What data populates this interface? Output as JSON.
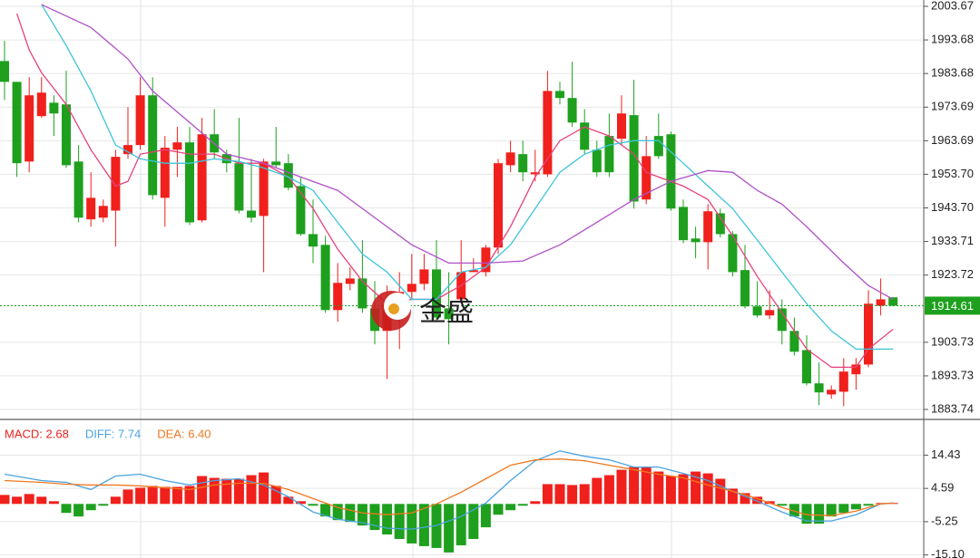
{
  "chart_data": [
    {
      "type": "candlestick",
      "up_color": "#f0201c",
      "down_color": "#1ea01e",
      "grid": true,
      "ylim": [
        1881.58,
        2005.56
      ],
      "yticks": [
        2003.67,
        1993.68,
        1983.68,
        1973.69,
        1963.69,
        {
          "value": 1953.7,
          "label": "1953.70"
        },
        {
          "value": 1943.7,
          "label": "1943.70"
        },
        1933.71,
        1923.72,
        1903.73,
        1893.73,
        1883.74
      ],
      "last_price": 1914.61,
      "last_price_color": "#1ea01e",
      "watermark": "金盛",
      "ohlc": [
        [
          1987.4,
          1993.4,
          1975.8,
          1981.2
        ],
        [
          1981.2,
          1981.2,
          1952.9,
          1957.0
        ],
        [
          1957.5,
          1982.6,
          1954.3,
          1977.2
        ],
        [
          1971.0,
          1982.6,
          1970.5,
          1978.0
        ],
        [
          1975.0,
          1977.2,
          1965.1,
          1971.8
        ],
        [
          1974.5,
          1984.5,
          1955.6,
          1956.4
        ],
        [
          1957.5,
          1962.4,
          1939.4,
          1940.8
        ],
        [
          1940.3,
          1954.3,
          1938.1,
          1946.7
        ],
        [
          1940.8,
          1946.2,
          1939.4,
          1944.3
        ],
        [
          1942.9,
          1961.0,
          1932.2,
          1958.9
        ],
        [
          1959.7,
          1973.7,
          1958.3,
          1962.4
        ],
        [
          1962.4,
          1982.6,
          1961.0,
          1977.2
        ],
        [
          1977.2,
          1982.6,
          1946.2,
          1947.5
        ],
        [
          1946.7,
          1965.1,
          1938.1,
          1961.6
        ],
        [
          1961.0,
          1967.8,
          1952.9,
          1963.2
        ],
        [
          1963.2,
          1967.8,
          1938.6,
          1939.4
        ],
        [
          1940.0,
          1970.5,
          1939.4,
          1965.6
        ],
        [
          1965.6,
          1973.1,
          1958.3,
          1960.2
        ],
        [
          1959.7,
          1961.0,
          1954.3,
          1957.0
        ],
        [
          1957.0,
          1970.5,
          1942.1,
          1942.9
        ],
        [
          1942.9,
          1958.3,
          1939.4,
          1940.8
        ],
        [
          1941.3,
          1958.3,
          1924.6,
          1957.5
        ],
        [
          1957.5,
          1967.8,
          1955.6,
          1956.4
        ],
        [
          1957.0,
          1959.7,
          1948.9,
          1949.7
        ],
        [
          1950.2,
          1952.9,
          1935.4,
          1935.9
        ],
        [
          1935.9,
          1946.2,
          1927.3,
          1932.2
        ],
        [
          1932.7,
          1935.4,
          1912.5,
          1913.3
        ],
        [
          1913.3,
          1927.3,
          1909.8,
          1921.4
        ],
        [
          1921.1,
          1926.0,
          1919.2,
          1922.7
        ],
        [
          1922.7,
          1934.1,
          1912.5,
          1913.8
        ],
        [
          1913.8,
          1921.9,
          1903.1,
          1907.1
        ],
        [
          1907.1,
          1920.6,
          1892.8,
          1915.2
        ],
        [
          1913.8,
          1924.6,
          1901.7,
          1918.7
        ],
        [
          1918.7,
          1930.0,
          1916.5,
          1921.1
        ],
        [
          1921.1,
          1930.0,
          1919.2,
          1925.4
        ],
        [
          1925.4,
          1934.1,
          1909.8,
          1911.1
        ],
        [
          1913.8,
          1924.6,
          1903.1,
          1910.6
        ],
        [
          1916.5,
          1934.1,
          1915.2,
          1924.6
        ],
        [
          1924.6,
          1928.7,
          1924.6,
          1925.2
        ],
        [
          1924.6,
          1932.7,
          1923.3,
          1931.9
        ],
        [
          1931.9,
          1958.3,
          1930.0,
          1957.0
        ],
        [
          1956.4,
          1963.7,
          1954.3,
          1960.2
        ],
        [
          1959.7,
          1963.7,
          1951.6,
          1954.3
        ],
        [
          1953.7,
          1961.0,
          1951.6,
          1954.3
        ],
        [
          1953.7,
          1984.5,
          1952.9,
          1978.5
        ],
        [
          1978.5,
          1981.2,
          1974.5,
          1976.4
        ],
        [
          1976.4,
          1987.2,
          1967.8,
          1969.1
        ],
        [
          1969.1,
          1973.1,
          1959.7,
          1961.0
        ],
        [
          1961.0,
          1963.7,
          1952.9,
          1954.3
        ],
        [
          1965.1,
          1971.8,
          1952.9,
          1954.3
        ],
        [
          1964.3,
          1977.2,
          1962.4,
          1971.8
        ],
        [
          1971.3,
          1981.8,
          1943.5,
          1945.6
        ],
        [
          1946.2,
          1965.1,
          1944.8,
          1959.1
        ],
        [
          1965.1,
          1971.8,
          1958.3,
          1959.1
        ],
        [
          1965.6,
          1966.4,
          1942.9,
          1943.5
        ],
        [
          1944.0,
          1946.2,
          1933.2,
          1934.1
        ],
        [
          1934.6,
          1938.1,
          1928.7,
          1933.5
        ],
        [
          1933.5,
          1944.8,
          1925.4,
          1942.7
        ],
        [
          1942.1,
          1943.5,
          1934.9,
          1935.9
        ],
        [
          1935.9,
          1936.8,
          1923.3,
          1924.6
        ],
        [
          1925.2,
          1932.7,
          1913.8,
          1914.4
        ],
        [
          1914.4,
          1921.9,
          1911.1,
          1911.7
        ],
        [
          1911.7,
          1919.2,
          1910.6,
          1913.3
        ],
        [
          1913.8,
          1916.5,
          1903.1,
          1907.1
        ],
        [
          1907.1,
          1911.1,
          1899.8,
          1900.9
        ],
        [
          1901.4,
          1905.8,
          1890.9,
          1891.5
        ],
        [
          1891.5,
          1897.7,
          1885.0,
          1888.8
        ],
        [
          1888.2,
          1890.9,
          1886.9,
          1889.6
        ],
        [
          1889.0,
          1899.0,
          1884.7,
          1895.0
        ],
        [
          1894.2,
          1899.0,
          1889.6,
          1897.1
        ],
        [
          1897.1,
          1919.2,
          1896.3,
          1915.2
        ],
        [
          1914.6,
          1922.7,
          1911.7,
          1916.5
        ],
        [
          1917.1,
          1917.1,
          1914.4,
          1914.61
        ]
      ],
      "lines": [
        {
          "color": "#e8407c",
          "x": [
            1,
            2,
            3,
            5,
            7,
            9,
            10,
            11,
            13,
            15,
            17,
            19,
            21,
            23,
            25,
            27,
            29,
            31,
            33,
            35,
            37,
            39,
            41,
            43,
            45,
            47,
            49,
            51,
            52,
            53,
            55,
            57,
            59,
            61,
            63,
            65,
            67,
            69,
            70,
            72
          ],
          "values": [
            2001.5,
            1990.7,
            1983.9,
            1974.5,
            1961.0,
            1950.2,
            1951.6,
            1959.7,
            1961.0,
            1959.7,
            1959.7,
            1957.0,
            1957.0,
            1952.9,
            1943.5,
            1931.4,
            1921.9,
            1915.2,
            1916.5,
            1916.5,
            1920.6,
            1926.0,
            1938.1,
            1952.9,
            1963.7,
            1967.8,
            1965.1,
            1959.7,
            1954.3,
            1952.9,
            1950.2,
            1946.2,
            1935.4,
            1923.3,
            1912.5,
            1901.7,
            1896.3,
            1896.3,
            1901.7,
            1907.6
          ]
        },
        {
          "color": "#3cc4da",
          "x": [
            3,
            5,
            7,
            9,
            11,
            13,
            15,
            17,
            19,
            21,
            23,
            25,
            27,
            29,
            31,
            33,
            35,
            37,
            39,
            41,
            43,
            45,
            47,
            49,
            51,
            53,
            55,
            57,
            59,
            61,
            63,
            65,
            67,
            69,
            72
          ],
          "values": [
            2004.2,
            1992.0,
            1978.5,
            1962.4,
            1958.3,
            1957.0,
            1957.0,
            1958.3,
            1957.5,
            1955.6,
            1952.9,
            1948.9,
            1939.4,
            1930.0,
            1924.6,
            1916.5,
            1916.5,
            1924.6,
            1926.0,
            1932.7,
            1943.5,
            1954.3,
            1959.7,
            1962.4,
            1963.7,
            1963.7,
            1957.0,
            1950.2,
            1943.5,
            1934.1,
            1924.6,
            1915.2,
            1907.1,
            1901.7,
            1901.7
          ]
        },
        {
          "color": "#b050c8",
          "x": [
            3,
            7,
            10,
            12,
            15,
            18,
            21,
            24,
            27,
            30,
            33,
            36,
            39,
            42,
            45,
            48,
            51,
            54,
            57,
            59,
            61,
            63,
            65,
            68,
            70,
            72
          ],
          "values": [
            2004.2,
            1997.4,
            1988.0,
            1978.5,
            1969.1,
            1959.7,
            1957.0,
            1952.9,
            1948.9,
            1940.8,
            1932.7,
            1927.3,
            1927.3,
            1927.9,
            1932.7,
            1939.4,
            1946.2,
            1951.6,
            1954.8,
            1954.3,
            1948.9,
            1944.8,
            1938.1,
            1927.3,
            1920.6,
            1916.5
          ]
        }
      ]
    },
    {
      "type": "macd",
      "up_color": "#f0201c",
      "down_color": "#1ea01e",
      "grid": true,
      "ylim": [
        -16.0,
        24.2
      ],
      "yticks": [
        14.43,
        4.59,
        -5.25,
        {
          "value": -15.1,
          "label": "-15.10"
        }
      ],
      "legend": [
        {
          "text": "MACD: 2.68",
          "color": "#e8221d"
        },
        {
          "text": "DIFF: 7.74",
          "color": "#4aa3e0"
        },
        {
          "text": "DEA: 6.40",
          "color": "#f07820"
        }
      ],
      "values": [
        2.66,
        2.13,
        2.93,
        2.13,
        0.8,
        -2.66,
        -3.72,
        -1.86,
        -0.53,
        2.13,
        4.26,
        4.79,
        5.32,
        5.05,
        5.05,
        5.32,
        8.25,
        7.71,
        7.45,
        7.45,
        8.51,
        9.31,
        5.32,
        2.13,
        0.8,
        -0.53,
        -3.72,
        -4.79,
        -5.32,
        -6.38,
        -7.71,
        -9.04,
        -10.37,
        -11.7,
        -12.5,
        -13.03,
        -14.36,
        -12.24,
        -10.37,
        -6.92,
        -3.19,
        -1.86,
        -0.53,
        0.8,
        5.85,
        5.85,
        5.59,
        5.85,
        7.71,
        8.51,
        10.11,
        10.91,
        10.91,
        9.58,
        8.25,
        8.78,
        9.58,
        9.04,
        7.45,
        4.52,
        3.19,
        2.13,
        0.8,
        -0.53,
        -3.72,
        -5.85,
        -5.85,
        -3.72,
        -2.66,
        -1.6,
        -0.53,
        0.27,
        0.27
      ],
      "lines": [
        {
          "color": "#4aa3e0",
          "x": [
            0,
            3,
            5,
            7,
            9,
            11,
            13,
            15,
            17,
            19,
            21,
            23,
            25,
            27,
            29,
            31,
            33,
            35,
            37,
            39,
            41,
            43,
            45,
            47,
            49,
            51,
            53,
            55,
            57,
            59,
            61,
            63,
            65,
            67,
            69,
            71,
            72
          ],
          "values": [
            8.78,
            6.92,
            6.38,
            4.26,
            8.25,
            8.78,
            6.92,
            5.59,
            6.92,
            7.45,
            5.59,
            2.13,
            -2.39,
            -4.52,
            -5.59,
            -7.18,
            -7.45,
            -6.38,
            -3.72,
            0.27,
            6.92,
            12.77,
            15.69,
            14.1,
            13.03,
            10.91,
            10.91,
            9.04,
            6.92,
            3.72,
            0.8,
            -2.39,
            -5.05,
            -5.05,
            -3.19,
            0,
            0.27
          ]
        },
        {
          "color": "#f07820",
          "x": [
            0,
            3,
            5,
            7,
            9,
            11,
            13,
            15,
            17,
            19,
            21,
            23,
            25,
            27,
            29,
            31,
            33,
            35,
            37,
            39,
            41,
            43,
            45,
            47,
            49,
            51,
            53,
            55,
            57,
            59,
            61,
            63,
            65,
            67,
            69,
            71,
            72
          ],
          "values": [
            6.92,
            6.38,
            5.85,
            5.59,
            5.59,
            5.32,
            4.79,
            4.26,
            5.59,
            6.12,
            6.12,
            4.26,
            1.6,
            -1.06,
            -2.66,
            -3.19,
            -2.66,
            0,
            3.46,
            7.45,
            11.44,
            13.03,
            13.3,
            12.77,
            11.44,
            10.11,
            8.78,
            7.71,
            5.59,
            3.72,
            1.6,
            -1.06,
            -3.19,
            -3.46,
            -2.13,
            0,
            0.27
          ]
        }
      ]
    }
  ]
}
